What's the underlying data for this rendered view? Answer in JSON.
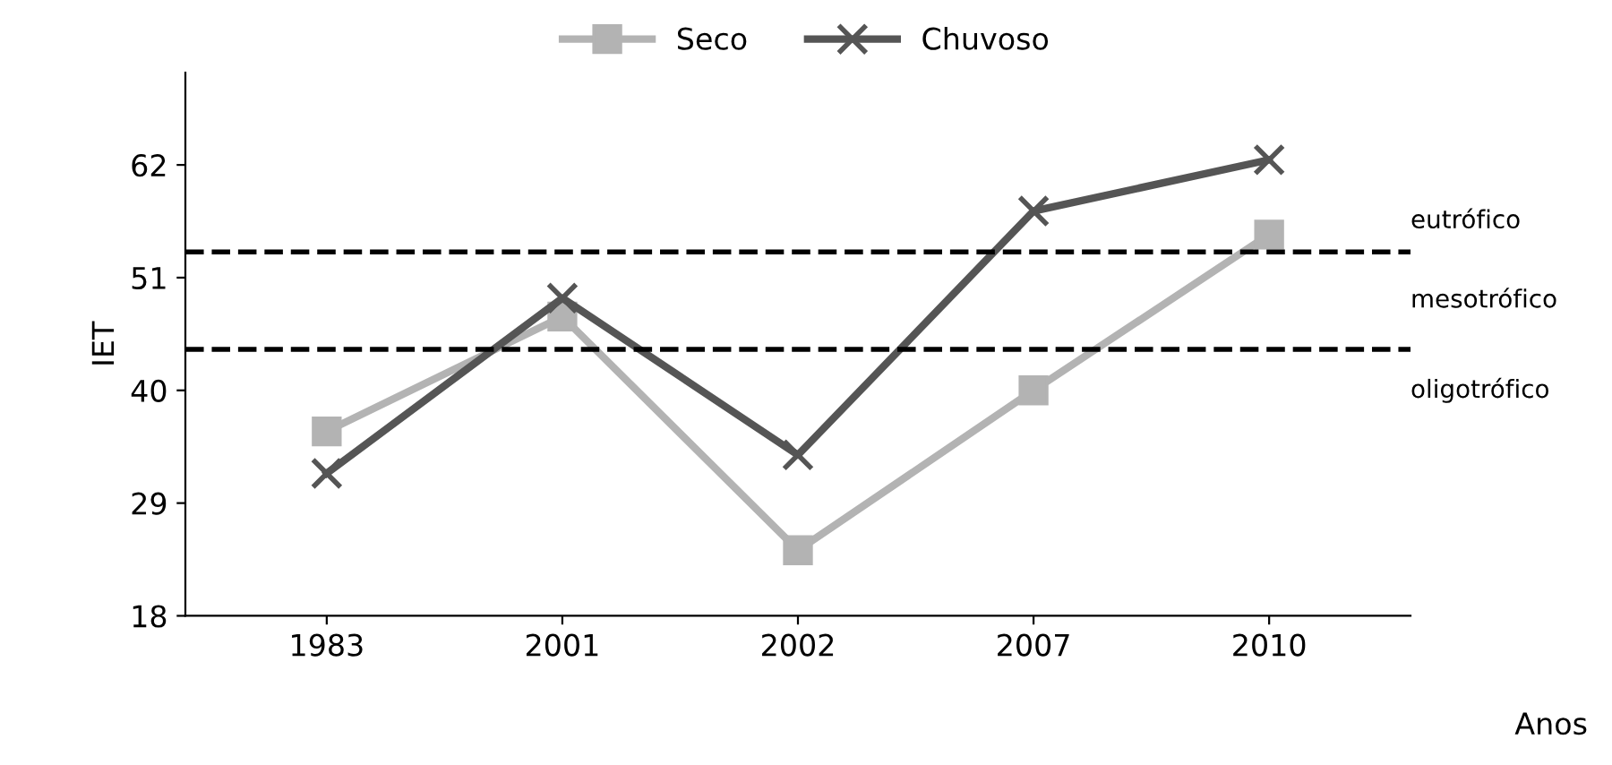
{
  "chart_data": {
    "type": "line",
    "ylabel": "IET",
    "xlabel": "Anos",
    "categories": [
      "1983",
      "2001",
      "2002",
      "2007",
      "2010"
    ],
    "series": [
      {
        "name": "Seco",
        "color": "#b3b3b3",
        "marker": "square",
        "values": [
          36,
          47.2,
          24.4,
          40,
          55.2
        ]
      },
      {
        "name": "Chuvoso",
        "color": "#555555",
        "marker": "cross",
        "values": [
          31.9,
          49,
          33.7,
          57.5,
          62.5
        ]
      }
    ],
    "ylim": [
      18,
      71
    ],
    "yticks": [
      18,
      29,
      40,
      51,
      62
    ],
    "ref_lines": [
      {
        "axis": "y",
        "value": 53.5,
        "color": "#000000",
        "line_style": "dashed"
      },
      {
        "axis": "y",
        "value": 44,
        "color": "#000000",
        "line_style": "dashed"
      }
    ],
    "annotations": [
      "eutrófico",
      "mesotrófico",
      "oligotrófico"
    ],
    "grid": false,
    "legend": "top",
    "line_style": "solid"
  }
}
